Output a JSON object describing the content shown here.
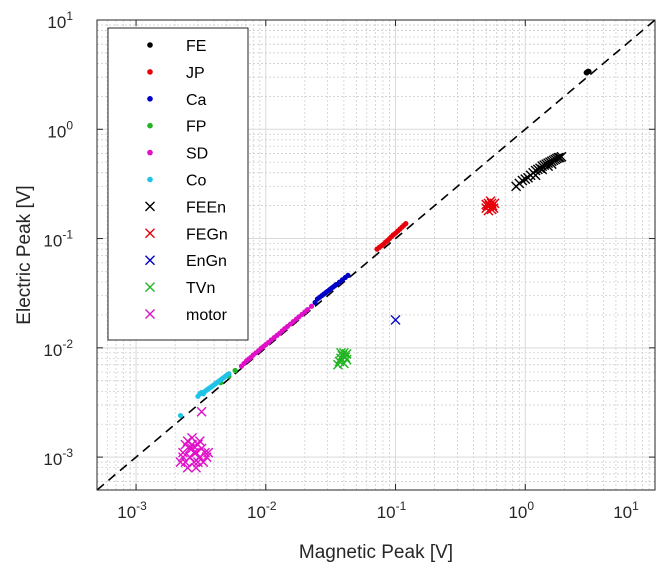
{
  "chart_data": {
    "type": "scatter",
    "xscale": "log",
    "yscale": "log",
    "xlim": [
      0.0005,
      10
    ],
    "ylim": [
      0.0005,
      10
    ],
    "xlabel": "Magnetic Peak [V]",
    "ylabel": "Electric Peak [V]",
    "xticks": [
      {
        "value": 0.001,
        "base": "10",
        "exp": "-3"
      },
      {
        "value": 0.01,
        "base": "10",
        "exp": "-2"
      },
      {
        "value": 0.1,
        "base": "10",
        "exp": "-1"
      },
      {
        "value": 1,
        "base": "10",
        "exp": "0"
      },
      {
        "value": 10,
        "base": "10",
        "exp": "1"
      }
    ],
    "yticks": [
      {
        "value": 0.001,
        "base": "10",
        "exp": "-3"
      },
      {
        "value": 0.01,
        "base": "10",
        "exp": "-2"
      },
      {
        "value": 0.1,
        "base": "10",
        "exp": "-1"
      },
      {
        "value": 1,
        "base": "10",
        "exp": "0"
      },
      {
        "value": 10,
        "base": "10",
        "exp": "1"
      }
    ],
    "grid": true,
    "minor_grid": true,
    "legend_position": "top-left",
    "reference_line": {
      "style": "dashed",
      "color": "#000000",
      "relation": "y = x"
    },
    "series": [
      {
        "name": "FE",
        "marker": "dot",
        "color": "#000000",
        "points": [
          [
            2.95,
            3.3
          ],
          [
            3.0,
            3.35
          ],
          [
            3.05,
            3.4
          ],
          [
            3.1,
            3.38
          ],
          [
            2.98,
            3.28
          ]
        ]
      },
      {
        "name": "JP",
        "marker": "dot",
        "color": "#e8000b",
        "points": [
          [
            0.072,
            0.08
          ],
          [
            0.075,
            0.083
          ],
          [
            0.078,
            0.086
          ],
          [
            0.081,
            0.089
          ],
          [
            0.084,
            0.093
          ],
          [
            0.087,
            0.096
          ],
          [
            0.09,
            0.1
          ],
          [
            0.093,
            0.104
          ],
          [
            0.096,
            0.108
          ],
          [
            0.1,
            0.112
          ],
          [
            0.104,
            0.117
          ],
          [
            0.108,
            0.122
          ],
          [
            0.112,
            0.127
          ],
          [
            0.116,
            0.132
          ],
          [
            0.12,
            0.137
          ]
        ]
      },
      {
        "name": "Ca",
        "marker": "dot",
        "color": "#0000c8",
        "points": [
          [
            0.024,
            0.026
          ],
          [
            0.025,
            0.028
          ],
          [
            0.026,
            0.029
          ],
          [
            0.027,
            0.03
          ],
          [
            0.028,
            0.031
          ],
          [
            0.029,
            0.032
          ],
          [
            0.03,
            0.033
          ],
          [
            0.031,
            0.034
          ],
          [
            0.032,
            0.035
          ],
          [
            0.033,
            0.036
          ],
          [
            0.034,
            0.037
          ],
          [
            0.035,
            0.038
          ],
          [
            0.037,
            0.04
          ],
          [
            0.039,
            0.042
          ],
          [
            0.041,
            0.044
          ],
          [
            0.043,
            0.046
          ]
        ]
      },
      {
        "name": "FP",
        "marker": "dot",
        "color": "#22b522",
        "points": [
          [
            0.0045,
            0.0048
          ],
          [
            0.0052,
            0.0055
          ],
          [
            0.0058,
            0.0062
          ]
        ]
      },
      {
        "name": "SD",
        "marker": "dot",
        "color": "#e010c8",
        "points": [
          [
            0.0065,
            0.0068
          ],
          [
            0.0068,
            0.0072
          ],
          [
            0.0071,
            0.0076
          ],
          [
            0.0074,
            0.0079
          ],
          [
            0.0077,
            0.0082
          ],
          [
            0.008,
            0.0086
          ],
          [
            0.0084,
            0.009
          ],
          [
            0.0088,
            0.0094
          ],
          [
            0.0092,
            0.0099
          ],
          [
            0.0096,
            0.0103
          ],
          [
            0.01,
            0.0107
          ],
          [
            0.0105,
            0.0112
          ],
          [
            0.011,
            0.0118
          ],
          [
            0.0116,
            0.0124
          ],
          [
            0.0122,
            0.013
          ],
          [
            0.0128,
            0.0136
          ],
          [
            0.0134,
            0.0143
          ],
          [
            0.014,
            0.015
          ],
          [
            0.0147,
            0.0157
          ],
          [
            0.0155,
            0.0165
          ],
          [
            0.0163,
            0.0174
          ],
          [
            0.0172,
            0.0183
          ],
          [
            0.018,
            0.0192
          ],
          [
            0.019,
            0.0202
          ],
          [
            0.02,
            0.0213
          ],
          [
            0.021,
            0.0224
          ],
          [
            0.0225,
            0.024
          ]
        ]
      },
      {
        "name": "Co",
        "marker": "dot",
        "color": "#1ec3e6",
        "points": [
          [
            0.0022,
            0.0024
          ],
          [
            0.003,
            0.0036
          ],
          [
            0.0031,
            0.0038
          ],
          [
            0.0032,
            0.0039
          ],
          [
            0.0033,
            0.0038
          ],
          [
            0.0034,
            0.004
          ],
          [
            0.0035,
            0.0041
          ],
          [
            0.0036,
            0.0042
          ],
          [
            0.0037,
            0.0043
          ],
          [
            0.0038,
            0.0044
          ],
          [
            0.0039,
            0.0045
          ],
          [
            0.004,
            0.0046
          ],
          [
            0.0041,
            0.0047
          ],
          [
            0.0042,
            0.0048
          ],
          [
            0.0043,
            0.0049
          ],
          [
            0.0044,
            0.005
          ],
          [
            0.0045,
            0.0051
          ],
          [
            0.0046,
            0.0052
          ],
          [
            0.0047,
            0.0053
          ],
          [
            0.0048,
            0.0054
          ],
          [
            0.0049,
            0.0055
          ],
          [
            0.005,
            0.0056
          ],
          [
            0.0052,
            0.0058
          ]
        ]
      },
      {
        "name": "FEEn",
        "marker": "x",
        "color": "#000000",
        "points": [
          [
            0.85,
            0.3
          ],
          [
            0.9,
            0.32
          ],
          [
            0.95,
            0.34
          ],
          [
            1.0,
            0.35
          ],
          [
            1.05,
            0.36
          ],
          [
            1.1,
            0.38
          ],
          [
            1.15,
            0.4
          ],
          [
            1.2,
            0.42
          ],
          [
            1.25,
            0.43
          ],
          [
            1.3,
            0.44
          ],
          [
            1.35,
            0.46
          ],
          [
            1.4,
            0.47
          ],
          [
            1.45,
            0.48
          ],
          [
            1.5,
            0.49
          ],
          [
            1.55,
            0.5
          ],
          [
            1.6,
            0.51
          ],
          [
            1.65,
            0.52
          ],
          [
            1.7,
            0.53
          ],
          [
            1.75,
            0.54
          ],
          [
            1.8,
            0.55
          ],
          [
            1.85,
            0.55
          ],
          [
            1.9,
            0.56
          ],
          [
            1.2,
            0.38
          ],
          [
            1.35,
            0.43
          ],
          [
            1.5,
            0.46
          ],
          [
            1.6,
            0.48
          ]
        ]
      },
      {
        "name": "FEGn",
        "marker": "x",
        "color": "#e8000b",
        "points": [
          [
            0.5,
            0.19
          ],
          [
            0.51,
            0.2
          ],
          [
            0.52,
            0.21
          ],
          [
            0.53,
            0.2
          ],
          [
            0.54,
            0.22
          ],
          [
            0.55,
            0.21
          ],
          [
            0.56,
            0.2
          ],
          [
            0.57,
            0.19
          ],
          [
            0.58,
            0.21
          ],
          [
            0.52,
            0.18
          ],
          [
            0.55,
            0.185
          ],
          [
            0.5,
            0.205
          ]
        ]
      },
      {
        "name": "EnGn",
        "marker": "x",
        "color": "#0000c8",
        "points": [
          [
            0.1,
            0.018
          ]
        ]
      },
      {
        "name": "TVn",
        "marker": "x",
        "color": "#22b522",
        "points": [
          [
            0.036,
            0.007
          ],
          [
            0.037,
            0.0075
          ],
          [
            0.038,
            0.008
          ],
          [
            0.039,
            0.0085
          ],
          [
            0.04,
            0.009
          ],
          [
            0.041,
            0.0082
          ],
          [
            0.042,
            0.0078
          ],
          [
            0.038,
            0.009
          ],
          [
            0.04,
            0.0072
          ],
          [
            0.042,
            0.0088
          ]
        ]
      },
      {
        "name": "motor",
        "marker": "x",
        "color": "#e010c8",
        "points": [
          [
            0.0032,
            0.0026
          ],
          [
            0.0022,
            0.0009
          ],
          [
            0.0023,
            0.0011
          ],
          [
            0.0024,
            0.0013
          ],
          [
            0.0025,
            0.0008
          ],
          [
            0.0026,
            0.001
          ],
          [
            0.0027,
            0.0012
          ],
          [
            0.0028,
            0.0009
          ],
          [
            0.0029,
            0.0011
          ],
          [
            0.003,
            0.0013
          ],
          [
            0.0031,
            0.001
          ],
          [
            0.0032,
            0.0012
          ],
          [
            0.0033,
            0.0009
          ],
          [
            0.0034,
            0.0011
          ],
          [
            0.0025,
            0.0014
          ],
          [
            0.0027,
            0.0015
          ],
          [
            0.0029,
            0.0008
          ],
          [
            0.0031,
            0.0014
          ],
          [
            0.0023,
            0.001
          ],
          [
            0.0026,
            0.0012
          ],
          [
            0.0028,
            0.0011
          ],
          [
            0.003,
            0.0009
          ],
          [
            0.0035,
            0.001
          ],
          [
            0.0036,
            0.0011
          ],
          [
            0.0024,
            0.0009
          ],
          [
            0.0027,
            0.0013
          ]
        ]
      }
    ]
  }
}
